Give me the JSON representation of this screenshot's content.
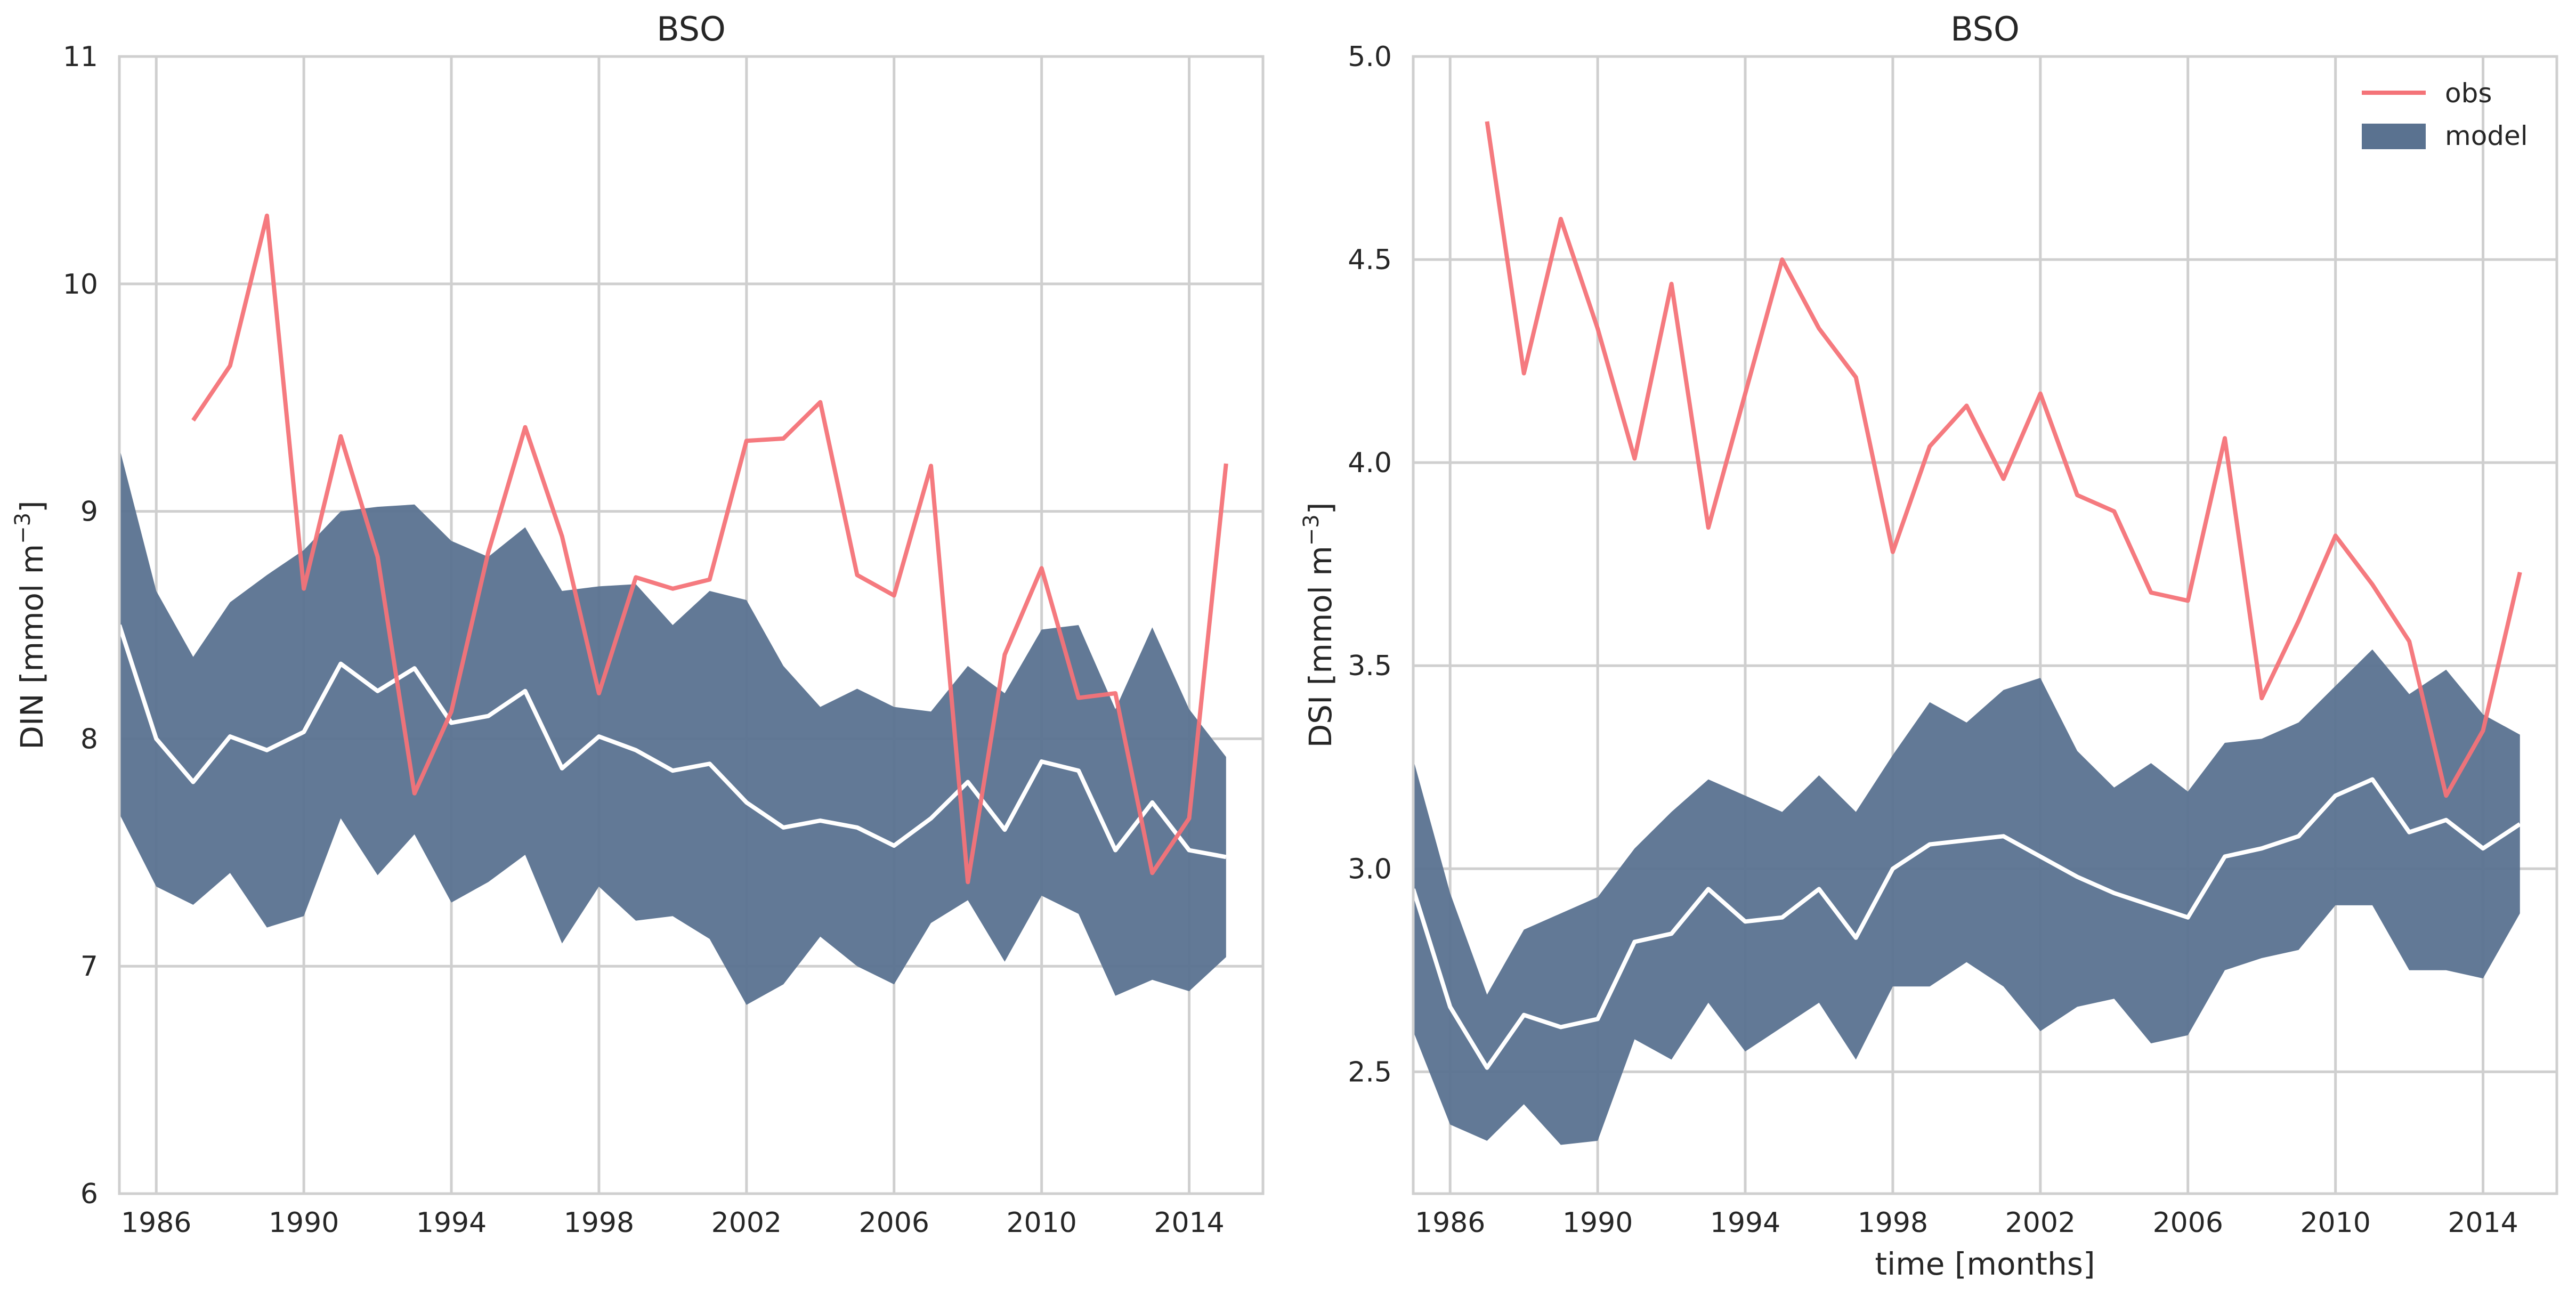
{
  "chart_data": [
    {
      "type": "line",
      "title": "BSO",
      "xlabel": "",
      "ylabel": "DIN [mmol m",
      "ylabel_sup": "−3",
      "ylabel_end": "]",
      "xlim": [
        1985,
        2016
      ],
      "ylim": [
        6,
        11
      ],
      "xticks": [
        1986,
        1990,
        1994,
        1998,
        2002,
        2006,
        2010,
        2014
      ],
      "xtick_labels": [
        "1986",
        "1990",
        "1994",
        "1998",
        "2002",
        "2006",
        "2010",
        "2014"
      ],
      "yticks": [
        6,
        7,
        8,
        9,
        10,
        11
      ],
      "ytick_labels": [
        "6",
        "7",
        "8",
        "9",
        "10",
        "11"
      ],
      "grid": true,
      "band": {
        "x": [
          1985,
          1986,
          1987,
          1988,
          1989,
          1990,
          1991,
          1992,
          1993,
          1994,
          1995,
          1996,
          1997,
          1998,
          1999,
          2000,
          2001,
          2002,
          2003,
          2004,
          2005,
          2006,
          2007,
          2008,
          2009,
          2010,
          2011,
          2012,
          2013,
          2014,
          2015
        ],
        "upper": [
          9.28,
          8.65,
          8.36,
          8.6,
          8.72,
          8.83,
          9.0,
          9.02,
          9.03,
          8.87,
          8.8,
          8.93,
          8.65,
          8.67,
          8.68,
          8.5,
          8.65,
          8.61,
          8.32,
          8.14,
          8.22,
          8.14,
          8.12,
          8.32,
          8.2,
          8.48,
          8.5,
          8.13,
          8.49,
          8.13,
          7.92
        ],
        "lower": [
          7.67,
          7.35,
          7.27,
          7.41,
          7.17,
          7.22,
          7.65,
          7.4,
          7.58,
          7.28,
          7.37,
          7.49,
          7.1,
          7.35,
          7.2,
          7.22,
          7.12,
          6.83,
          6.92,
          7.13,
          7.0,
          6.92,
          7.19,
          7.29,
          7.02,
          7.31,
          7.23,
          6.87,
          6.94,
          6.89,
          7.04
        ]
      },
      "mean": {
        "x": [
          1985,
          1986,
          1987,
          1988,
          1989,
          1990,
          1991,
          1992,
          1993,
          1994,
          1995,
          1996,
          1997,
          1998,
          1999,
          2000,
          2001,
          2002,
          2003,
          2004,
          2005,
          2006,
          2007,
          2008,
          2009,
          2010,
          2011,
          2012,
          2013,
          2014,
          2015
        ],
        "y": [
          8.5,
          8.0,
          7.81,
          8.01,
          7.95,
          8.03,
          8.33,
          8.21,
          8.31,
          8.07,
          8.1,
          8.21,
          7.87,
          8.01,
          7.95,
          7.86,
          7.89,
          7.72,
          7.61,
          7.64,
          7.61,
          7.53,
          7.65,
          7.81,
          7.6,
          7.9,
          7.86,
          7.51,
          7.72,
          7.51,
          7.48
        ]
      },
      "obs": {
        "x": [
          1987,
          1988,
          1989,
          1990,
          1991,
          1992,
          1993,
          1994,
          1995,
          1996,
          1997,
          1998,
          1999,
          2000,
          2001,
          2002,
          2003,
          2004,
          2005,
          2006,
          2007,
          2008,
          2009,
          2010,
          2011,
          2012,
          2013,
          2014,
          2015
        ],
        "y": [
          9.4,
          9.64,
          10.3,
          8.66,
          9.33,
          8.8,
          7.76,
          8.12,
          8.82,
          9.37,
          8.89,
          8.2,
          8.71,
          8.66,
          8.7,
          9.31,
          9.32,
          9.48,
          8.72,
          8.63,
          9.2,
          7.37,
          8.37,
          8.75,
          8.18,
          8.2,
          7.41,
          7.65,
          9.21
        ]
      },
      "colors": {
        "band": "#5a7290",
        "mean": "#ffffff",
        "obs": "#f47378",
        "grid": "#cfcfcf"
      }
    },
    {
      "type": "line",
      "title": "BSO",
      "xlabel": "time [months]",
      "ylabel": "DSI [mmol m",
      "ylabel_sup": "−3",
      "ylabel_end": "]",
      "xlim": [
        1985,
        2016
      ],
      "ylim": [
        2.2,
        5.0
      ],
      "xticks": [
        1986,
        1990,
        1994,
        1998,
        2002,
        2006,
        2010,
        2014
      ],
      "xtick_labels": [
        "1986",
        "1990",
        "1994",
        "1998",
        "2002",
        "2006",
        "2010",
        "2014"
      ],
      "yticks": [
        2.5,
        3.0,
        3.5,
        4.0,
        4.5,
        5.0
      ],
      "ytick_labels": [
        "2.5",
        "3.0",
        "3.5",
        "4.0",
        "4.5",
        "5.0"
      ],
      "grid": true,
      "legend": {
        "position": "top-right",
        "entries": [
          "obs",
          "model"
        ]
      },
      "band": {
        "x": [
          1985,
          1986,
          1987,
          1988,
          1989,
          1990,
          1991,
          1992,
          1993,
          1994,
          1995,
          1996,
          1997,
          1998,
          1999,
          2000,
          2001,
          2002,
          2003,
          2004,
          2005,
          2006,
          2007,
          2008,
          2009,
          2010,
          2011,
          2012,
          2013,
          2014,
          2015
        ],
        "upper": [
          3.27,
          2.94,
          2.69,
          2.85,
          2.89,
          2.93,
          3.05,
          3.14,
          3.22,
          3.18,
          3.14,
          3.23,
          3.14,
          3.28,
          3.41,
          3.36,
          3.44,
          3.47,
          3.29,
          3.2,
          3.26,
          3.19,
          3.31,
          3.32,
          3.36,
          3.45,
          3.54,
          3.43,
          3.49,
          3.38,
          3.33
        ],
        "lower": [
          2.6,
          2.37,
          2.33,
          2.42,
          2.32,
          2.33,
          2.58,
          2.53,
          2.67,
          2.55,
          2.61,
          2.67,
          2.53,
          2.71,
          2.71,
          2.77,
          2.71,
          2.6,
          2.66,
          2.68,
          2.57,
          2.59,
          2.75,
          2.78,
          2.8,
          2.91,
          2.91,
          2.75,
          2.75,
          2.73,
          2.89
        ]
      },
      "mean": {
        "x": [
          1985,
          1986,
          1987,
          1988,
          1989,
          1990,
          1991,
          1992,
          1993,
          1994,
          1995,
          1996,
          1997,
          1998,
          1999,
          2000,
          2001,
          2002,
          2003,
          2004,
          2005,
          2006,
          2007,
          2008,
          2009,
          2010,
          2011,
          2012,
          2013,
          2014,
          2015
        ],
        "y": [
          2.95,
          2.66,
          2.51,
          2.64,
          2.61,
          2.63,
          2.82,
          2.84,
          2.95,
          2.87,
          2.88,
          2.95,
          2.83,
          3.0,
          3.06,
          3.07,
          3.08,
          3.03,
          2.98,
          2.94,
          2.91,
          2.88,
          3.03,
          3.05,
          3.08,
          3.18,
          3.22,
          3.09,
          3.12,
          3.05,
          3.11
        ]
      },
      "obs": {
        "x": [
          1987,
          1988,
          1989,
          1990,
          1991,
          1992,
          1993,
          1994,
          1995,
          1996,
          1997,
          1998,
          1999,
          2000,
          2001,
          2002,
          2003,
          2004,
          2005,
          2006,
          2007,
          2008,
          2009,
          2010,
          2011,
          2012,
          2013,
          2014,
          2015
        ],
        "y": [
          4.84,
          4.22,
          4.6,
          4.33,
          4.01,
          4.44,
          3.84,
          4.17,
          4.5,
          4.33,
          4.21,
          3.78,
          4.04,
          4.14,
          3.96,
          4.17,
          3.92,
          3.88,
          3.68,
          3.66,
          4.06,
          3.42,
          3.61,
          3.82,
          3.7,
          3.56,
          3.18,
          3.34,
          3.73
        ]
      },
      "colors": {
        "band": "#5a7290",
        "mean": "#ffffff",
        "obs": "#f47378",
        "grid": "#cfcfcf"
      }
    }
  ]
}
